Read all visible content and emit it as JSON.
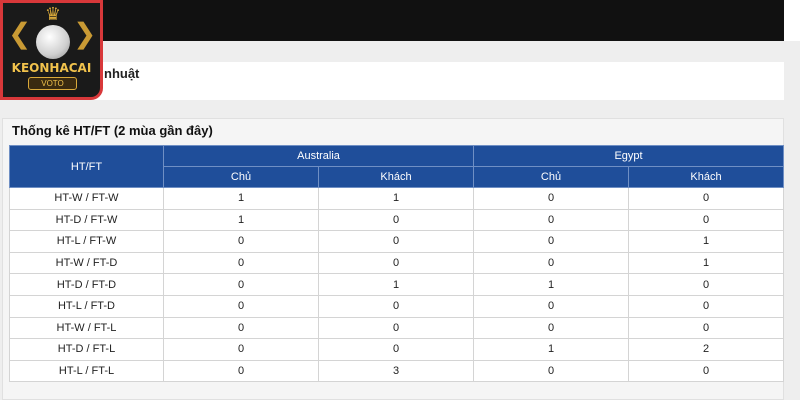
{
  "section_partial_title": "nhuật",
  "stats": {
    "title": "Thống kê HT/FT (2 mùa gần đây)",
    "header_label": "HT/FT",
    "teams": [
      "Australia",
      "Egypt"
    ],
    "sub_headers": [
      "Chủ",
      "Khách",
      "Chủ",
      "Khách"
    ],
    "rows": [
      {
        "label": "HT-W / FT-W",
        "values": [
          "1",
          "1",
          "0",
          "0"
        ]
      },
      {
        "label": "HT-D / FT-W",
        "values": [
          "1",
          "0",
          "0",
          "0"
        ]
      },
      {
        "label": "HT-L / FT-W",
        "values": [
          "0",
          "0",
          "0",
          "1"
        ]
      },
      {
        "label": "HT-W / FT-D",
        "values": [
          "0",
          "0",
          "0",
          "1"
        ]
      },
      {
        "label": "HT-D / FT-D",
        "values": [
          "0",
          "1",
          "1",
          "0"
        ]
      },
      {
        "label": "HT-L / FT-D",
        "values": [
          "0",
          "0",
          "0",
          "0"
        ]
      },
      {
        "label": "HT-W / FT-L",
        "values": [
          "0",
          "0",
          "0",
          "0"
        ]
      },
      {
        "label": "HT-D / FT-L",
        "values": [
          "0",
          "0",
          "1",
          "2"
        ]
      },
      {
        "label": "HT-L / FT-L",
        "values": [
          "0",
          "3",
          "0",
          "0"
        ]
      }
    ]
  },
  "logo": {
    "brand": "KEONHACAI",
    "sub": "VOTO",
    "icon": "soccer-ball-crown-icon",
    "colors": {
      "gold": "#f1c24c",
      "border": "#d8383a"
    }
  },
  "colors": {
    "header_bg": "#1f4e9a",
    "top_bar": "#111111"
  }
}
